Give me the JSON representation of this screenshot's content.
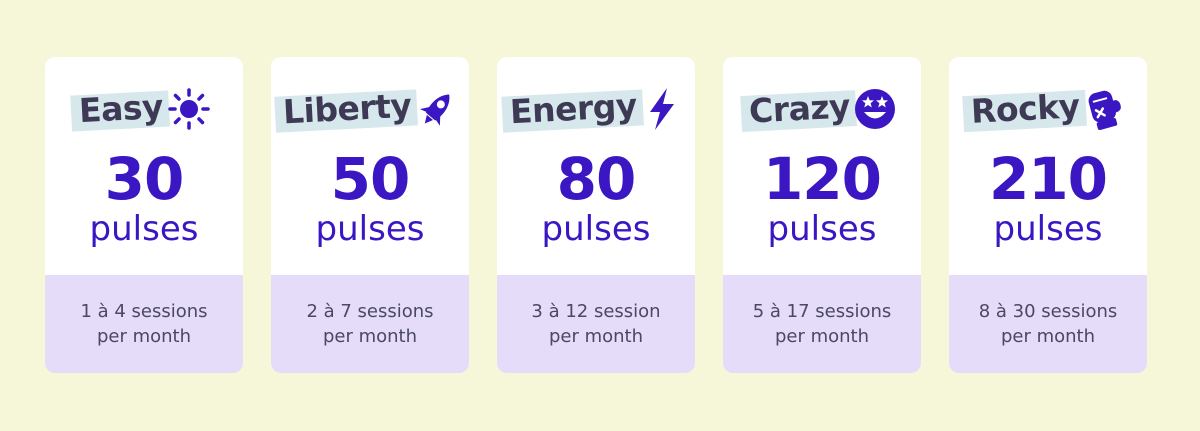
{
  "colors": {
    "background": "#f6f6d9",
    "card": "#ffffff",
    "card_bottom": "#e4dcf9",
    "accent": "#3a17c2",
    "title_highlight": "#d7e8ec",
    "title_text": "#3e3a56"
  },
  "cards": [
    {
      "name": "Easy",
      "icon": "sun-icon",
      "count": "30",
      "unit": "pulses",
      "sessions": "1 à 4 sessions",
      "period": "per month"
    },
    {
      "name": "Liberty",
      "icon": "rocket-icon",
      "count": "50",
      "unit": "pulses",
      "sessions": "2 à 7 sessions",
      "period": "per month"
    },
    {
      "name": "Energy",
      "icon": "lightning-icon",
      "count": "80",
      "unit": "pulses",
      "sessions": "3 à 12 session",
      "period": "per month"
    },
    {
      "name": "Crazy",
      "icon": "star-eyes-smiley-icon",
      "count": "120",
      "unit": "pulses",
      "sessions": "5 à 17 sessions",
      "period": "per month"
    },
    {
      "name": "Rocky",
      "icon": "boxing-glove-icon",
      "count": "210",
      "unit": "pulses",
      "sessions": "8 à 30 sessions",
      "period": "per month"
    }
  ]
}
